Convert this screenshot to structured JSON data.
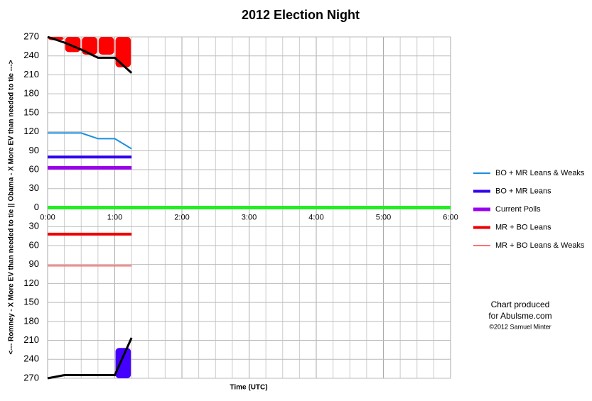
{
  "chart_data": {
    "type": "line",
    "title": "2012 Election Night",
    "x_label": "Time (UTC)",
    "y_label": "<--- Romney - X More EV than needed to tie ||   Obama - X More EV than needed to tie --->",
    "annotations": [
      "Chart produced",
      "for Abulsme.com",
      "©2012 Samuel Minter"
    ],
    "xlim": [
      0,
      6
    ],
    "xticks": [
      {
        "value": 0,
        "label": "0:00"
      },
      {
        "value": 1,
        "label": "1:00"
      },
      {
        "value": 2,
        "label": "2:00"
      },
      {
        "value": 3,
        "label": "3:00"
      },
      {
        "value": 4,
        "label": "4:00"
      },
      {
        "value": 5,
        "label": "5:00"
      },
      {
        "value": 6,
        "label": "6:00"
      }
    ],
    "xminorticks": [
      0.25,
      0.5,
      0.75,
      1.25,
      1.5,
      1.75,
      2.25,
      2.5,
      2.75,
      3.25,
      3.5,
      3.75,
      4.25,
      4.5,
      4.75,
      5.25,
      5.5,
      5.75
    ],
    "ylim": [
      -270,
      270
    ],
    "yticks": [
      270,
      240,
      210,
      180,
      150,
      120,
      90,
      60,
      30,
      0,
      {
        "value": -30,
        "label": "30"
      },
      {
        "value": -60,
        "label": "60"
      },
      {
        "value": -90,
        "label": "90"
      },
      {
        "value": -120,
        "label": "120"
      },
      {
        "value": -150,
        "label": "150"
      },
      {
        "value": -180,
        "label": "180"
      },
      {
        "value": -210,
        "label": "210"
      },
      {
        "value": -240,
        "label": "240"
      },
      {
        "value": -270,
        "label": "270"
      }
    ],
    "ytick_color_above": "#2b2bd0",
    "ytick_color_below": "#e01010",
    "grid": true,
    "zero_line_color": "#22ee22",
    "legend": "right",
    "bands": [
      {
        "color": "#ff0000",
        "x": [
          0.125,
          0.375,
          0.625,
          0.875,
          1.125
        ],
        "values": [
          265,
          246,
          242,
          242,
          222
        ]
      },
      {
        "color": "#4400ff",
        "x": [
          1.125
        ],
        "values": [
          -222
        ]
      }
    ],
    "series": [
      {
        "name": "BO + MR Leans & Weaks",
        "color": "#1a8fe0",
        "line_width": 2,
        "x": [
          0,
          0.25,
          0.5,
          0.75,
          1,
          1.25
        ],
        "values": [
          118,
          118,
          118,
          109,
          109,
          93
        ]
      },
      {
        "name": "BO + MR Leans",
        "color": "#3300ee",
        "line_width": 4,
        "x": [
          0,
          0.25,
          0.5,
          0.75,
          1,
          1.25
        ],
        "values": [
          80,
          80,
          80,
          80,
          80,
          80
        ]
      },
      {
        "name": "Current Polls",
        "color": "#9900ee",
        "line_width": 5,
        "x": [
          0,
          0.25,
          0.5,
          0.75,
          1,
          1.25
        ],
        "values": [
          63,
          63,
          63,
          63,
          63,
          63
        ]
      },
      {
        "name": "MR + BO Leans",
        "color": "#ee0000",
        "line_width": 4,
        "x": [
          0,
          0.25,
          0.5,
          0.75,
          1,
          1.25
        ],
        "values": [
          -42,
          -42,
          -42,
          -42,
          -42,
          -42
        ]
      },
      {
        "name": "MR + BO Leans & Weaks",
        "color": "#ff7070",
        "line_width": 2,
        "x": [
          0,
          0.25,
          0.5,
          0.75,
          1,
          1.25
        ],
        "values": [
          -92,
          -92,
          -92,
          -92,
          -92,
          -92
        ]
      },
      {
        "color": "#000000",
        "line_width": 3,
        "x": [
          0,
          0.25,
          0.5,
          0.75,
          1,
          1.25
        ],
        "values": [
          270,
          261,
          250,
          237,
          237,
          213
        ]
      },
      {
        "color": "#000000",
        "line_width": 3,
        "x": [
          0,
          0.25,
          0.5,
          0.75,
          1,
          1.25
        ],
        "values": [
          -270,
          -265,
          -265,
          -265,
          -265,
          -206
        ]
      }
    ]
  }
}
